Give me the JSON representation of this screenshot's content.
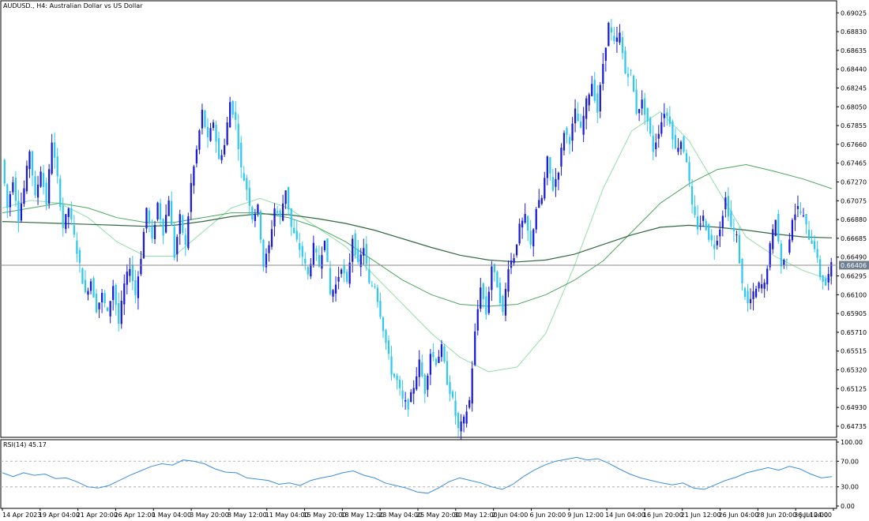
{
  "header": {
    "symbol": "AUDUSD.",
    "timeframe": "H4",
    "description": "Australian Dollar vs US Dollar"
  },
  "colors": {
    "bull": "#1a1adc",
    "bear": "#2ec8f2",
    "ma_fast": "#8fe0a8",
    "ma_mid": "#4aa85a",
    "ma_slow": "#2f6a3e",
    "rsi": "#3a8de0",
    "price_line": "#8a8a8a",
    "price_badge": "#6f7f8f"
  },
  "chart_data": [
    {
      "type": "candlestick",
      "title": "AUDUSD., H4:  Australian Dollar vs US Dollar",
      "ylim": [
        0.6462,
        0.6915
      ],
      "y_ticks": [
        "0.69025",
        "0.68830",
        "0.68635",
        "0.68440",
        "0.68245",
        "0.68050",
        "0.67855",
        "0.67660",
        "0.67465",
        "0.67270",
        "0.67075",
        "0.66880",
        "0.66685",
        "0.66490",
        "0.66295",
        "0.66100",
        "0.65905",
        "0.65710",
        "0.65515",
        "0.65320",
        "0.65125",
        "0.64930",
        "0.64735"
      ],
      "x_ticks": [
        "14 Apr 2023",
        "19 Apr 04:00",
        "21 Apr 20:00",
        "26 Apr 12:00",
        "1 May 04:00",
        "3 May 20:00",
        "8 May 12:00",
        "11 May 04:00",
        "15 May 20:00",
        "18 May 12:00",
        "23 May 04:00",
        "25 May 20:00",
        "30 May 12:00",
        "2 Jun 04:00",
        "6 Jun 20:00",
        "9 Jun 12:00",
        "14 Jun 04:00",
        "16 Jun 20:00",
        "21 Jun 12:00",
        "26 Jun 04:00",
        "28 Jun 20:00",
        "3 Jul 12:00",
        "6 Jul 04:00"
      ],
      "current_price": "0.66406",
      "price_path": [
        0.675,
        0.67,
        0.673,
        0.669,
        0.672,
        0.676,
        0.671,
        0.674,
        0.6705,
        0.677,
        0.673,
        0.668,
        0.67,
        0.667,
        0.664,
        0.661,
        0.6625,
        0.6595,
        0.661,
        0.659,
        0.662,
        0.658,
        0.662,
        0.664,
        0.661,
        0.665,
        0.67,
        0.6665,
        0.6705,
        0.6675,
        0.671,
        0.665,
        0.669,
        0.666,
        0.6725,
        0.676,
        0.68,
        0.677,
        0.679,
        0.675,
        0.6765,
        0.681,
        0.679,
        0.674,
        0.672,
        0.669,
        0.67,
        0.664,
        0.666,
        0.67,
        0.669,
        0.672,
        0.668,
        0.6665,
        0.665,
        0.663,
        0.666,
        0.664,
        0.667,
        0.661,
        0.662,
        0.664,
        0.662,
        0.667,
        0.664,
        0.666,
        0.662,
        0.662,
        0.659,
        0.656,
        0.653,
        0.652,
        0.65,
        0.6495,
        0.6515,
        0.654,
        0.651,
        0.655,
        0.654,
        0.6555,
        0.652,
        0.65,
        0.647,
        0.648,
        0.65,
        0.657,
        0.662,
        0.659,
        0.664,
        0.662,
        0.659,
        0.664,
        0.665,
        0.668,
        0.669,
        0.666,
        0.67,
        0.671,
        0.675,
        0.672,
        0.674,
        0.678,
        0.677,
        0.68,
        0.678,
        0.681,
        0.683,
        0.68,
        0.685,
        0.689,
        0.687,
        0.688,
        0.684,
        0.684,
        0.68,
        0.681,
        0.679,
        0.676,
        0.678,
        0.68,
        0.679,
        0.676,
        0.677,
        0.675,
        0.67,
        0.668,
        0.669,
        0.667,
        0.666,
        0.668,
        0.671,
        0.668,
        0.667,
        0.662,
        0.66,
        0.661,
        0.662,
        0.662,
        0.666,
        0.669,
        0.664,
        0.665,
        0.669,
        0.67,
        0.669,
        0.667,
        0.666,
        0.663,
        0.662,
        0.664
      ],
      "moving_averages": [
        {
          "values": [
            0.67,
            0.6708,
            0.6705,
            0.669,
            0.6665,
            0.665,
            0.665,
            0.6675,
            0.67,
            0.671,
            0.67,
            0.668,
            0.666,
            0.663,
            0.66,
            0.657,
            0.6545,
            0.653,
            0.6535,
            0.657,
            0.664,
            0.672,
            0.678,
            0.68,
            0.677,
            0.672,
            0.667,
            0.665,
            0.6635,
            0.6625
          ]
        },
        {
          "values": [
            0.6695,
            0.67,
            0.6705,
            0.67,
            0.669,
            0.6685,
            0.6685,
            0.669,
            0.6695,
            0.6695,
            0.669,
            0.668,
            0.6665,
            0.6645,
            0.6625,
            0.661,
            0.66,
            0.6598,
            0.66,
            0.661,
            0.6625,
            0.6645,
            0.6675,
            0.6705,
            0.6725,
            0.674,
            0.6745,
            0.6738,
            0.673,
            0.672
          ]
        },
        {
          "values": [
            0.6686,
            0.6685,
            0.6684,
            0.6683,
            0.6682,
            0.6681,
            0.6682,
            0.6686,
            0.6691,
            0.6694,
            0.6693,
            0.6689,
            0.6684,
            0.6677,
            0.6668,
            0.6659,
            0.6651,
            0.6646,
            0.6644,
            0.6646,
            0.6652,
            0.6662,
            0.6672,
            0.668,
            0.6682,
            0.668,
            0.6677,
            0.6673,
            0.667,
            0.6669
          ]
        }
      ]
    },
    {
      "type": "line",
      "title": "RSI(14) 45.17",
      "ylim": [
        0,
        100
      ],
      "y_ticks": [
        "100.00",
        "70.00",
        "30.00",
        "0.00"
      ],
      "levels": [
        70,
        30
      ],
      "values": [
        52,
        46,
        52,
        48,
        50,
        43,
        44,
        38,
        30,
        28,
        32,
        40,
        48,
        55,
        62,
        66,
        64,
        72,
        70,
        66,
        58,
        53,
        52,
        44,
        42,
        40,
        34,
        36,
        32,
        40,
        44,
        47,
        52,
        55,
        48,
        44,
        36,
        32,
        28,
        22,
        20,
        28,
        38,
        44,
        40,
        36,
        30,
        26,
        34,
        46,
        56,
        64,
        70,
        73,
        76,
        72,
        74,
        67,
        58,
        50,
        44,
        40,
        36,
        33,
        36,
        28,
        26,
        33,
        40,
        45,
        52,
        56,
        60,
        56,
        62,
        58,
        50,
        44,
        46
      ]
    }
  ]
}
